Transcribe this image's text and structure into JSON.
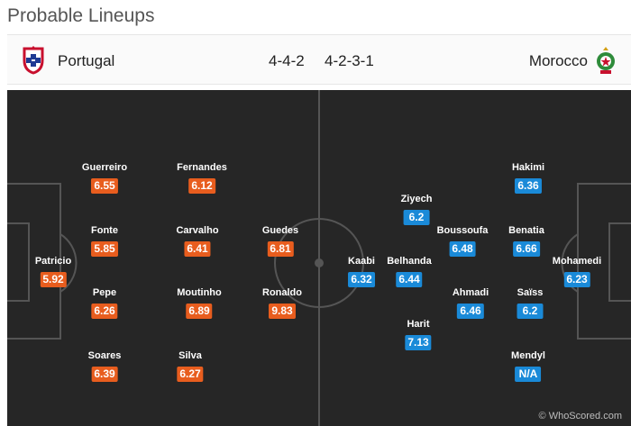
{
  "page_title": "Probable Lineups",
  "colors": {
    "home_rating": "#e85d1e",
    "away_rating": "#1a8ad8",
    "pitch": "#262626"
  },
  "home": {
    "name": "Portugal",
    "formation": "4-4-2",
    "crest_icon": "portugal-crest-icon",
    "players": [
      {
        "name": "Patricio",
        "rating": "5.92"
      },
      {
        "name": "Guerreiro",
        "rating": "6.55"
      },
      {
        "name": "Fonte",
        "rating": "5.85"
      },
      {
        "name": "Pepe",
        "rating": "6.26"
      },
      {
        "name": "Soares",
        "rating": "6.39"
      },
      {
        "name": "Fernandes",
        "rating": "6.12"
      },
      {
        "name": "Carvalho",
        "rating": "6.41"
      },
      {
        "name": "Moutinho",
        "rating": "6.89"
      },
      {
        "name": "Silva",
        "rating": "6.27"
      },
      {
        "name": "Guedes",
        "rating": "6.81"
      },
      {
        "name": "Ronaldo",
        "rating": "9.83"
      }
    ]
  },
  "away": {
    "name": "Morocco",
    "formation": "4-2-3-1",
    "crest_icon": "morocco-crest-icon",
    "players": [
      {
        "name": "Mohamedi",
        "rating": "6.23"
      },
      {
        "name": "Hakimi",
        "rating": "6.36"
      },
      {
        "name": "Benatia",
        "rating": "6.66"
      },
      {
        "name": "Saïss",
        "rating": "6.2"
      },
      {
        "name": "Mendyl",
        "rating": "N/A"
      },
      {
        "name": "Boussoufa",
        "rating": "6.48"
      },
      {
        "name": "Ahmadi",
        "rating": "6.46"
      },
      {
        "name": "Ziyech",
        "rating": "6.2"
      },
      {
        "name": "Belhanda",
        "rating": "6.44"
      },
      {
        "name": "Harit",
        "rating": "7.13"
      },
      {
        "name": "Kaabi",
        "rating": "6.32"
      }
    ]
  },
  "watermark": "© WhoScored.com"
}
